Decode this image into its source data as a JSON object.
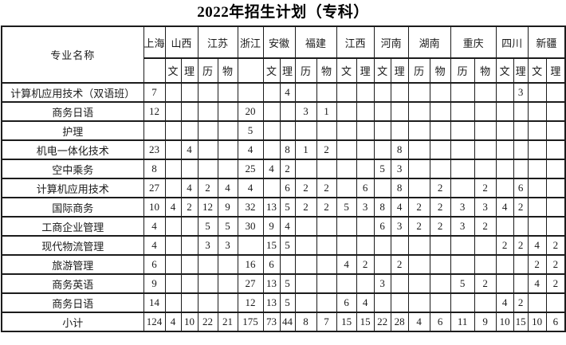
{
  "title": "2022年招生计划（专科）",
  "table": {
    "major_column_header": "专业名称",
    "provinces": [
      {
        "name": "上海",
        "subs": [
          ""
        ]
      },
      {
        "name": "山西",
        "subs": [
          "文",
          "理"
        ]
      },
      {
        "name": "江苏",
        "subs": [
          "历",
          "物"
        ]
      },
      {
        "name": "浙江",
        "subs": [
          ""
        ]
      },
      {
        "name": "安徽",
        "subs": [
          "文",
          "理"
        ]
      },
      {
        "name": "福建",
        "subs": [
          "历",
          "物"
        ]
      },
      {
        "name": "江西",
        "subs": [
          "文",
          "理"
        ]
      },
      {
        "name": "河南",
        "subs": [
          "文",
          "理"
        ]
      },
      {
        "name": "湖南",
        "subs": [
          "历",
          "物"
        ]
      },
      {
        "name": "重庆",
        "subs": [
          "历",
          "物"
        ]
      },
      {
        "name": "四川",
        "subs": [
          "文",
          "理"
        ]
      },
      {
        "name": "新疆",
        "subs": [
          "文",
          "理"
        ]
      }
    ],
    "column_keys": [
      "上海",
      "山西文",
      "山西理",
      "江苏历",
      "江苏物",
      "浙江",
      "安徽文",
      "安徽理",
      "福建历",
      "福建物",
      "江西文",
      "江西理",
      "河南文",
      "河南理",
      "湖南历",
      "湖南物",
      "重庆历",
      "重庆物",
      "四川文",
      "四川理",
      "新疆文",
      "新疆理"
    ],
    "rows": [
      {
        "major": "计算机应用技术（双语班）",
        "values": [
          "7",
          "",
          "",
          "",
          "",
          "",
          "",
          "4",
          "",
          "",
          "",
          "",
          "",
          "",
          "",
          "",
          "",
          "",
          "",
          "3",
          "",
          ""
        ]
      },
      {
        "major": "商务日语",
        "values": [
          "12",
          "",
          "",
          "",
          "",
          "20",
          "",
          "",
          "3",
          "1",
          "",
          "",
          "",
          "",
          "",
          "",
          "",
          "",
          "",
          "",
          "",
          ""
        ]
      },
      {
        "major": "护理",
        "values": [
          "",
          "",
          "",
          "",
          "",
          "5",
          "",
          "",
          "",
          "",
          "",
          "",
          "",
          "",
          "",
          "",
          "",
          "",
          "",
          "",
          "",
          ""
        ]
      },
      {
        "major": "机电一体化技术",
        "values": [
          "23",
          "",
          "4",
          "",
          "",
          "4",
          "",
          "8",
          "1",
          "2",
          "",
          "",
          "",
          "8",
          "",
          "",
          "",
          "",
          "",
          "",
          "",
          ""
        ]
      },
      {
        "major": "空中乘务",
        "values": [
          "8",
          "",
          "",
          "",
          "",
          "25",
          "4",
          "2",
          "",
          "",
          "",
          "",
          "5",
          "3",
          "",
          "",
          "",
          "",
          "",
          "",
          "",
          ""
        ]
      },
      {
        "major": "计算机应用技术",
        "values": [
          "27",
          "",
          "4",
          "2",
          "4",
          "4",
          "",
          "6",
          "2",
          "2",
          "",
          "6",
          "",
          "8",
          "",
          "2",
          "",
          "2",
          "",
          "6",
          "",
          ""
        ]
      },
      {
        "major": "国际商务",
        "values": [
          "10",
          "4",
          "2",
          "12",
          "9",
          "32",
          "13",
          "5",
          "2",
          "2",
          "5",
          "3",
          "8",
          "4",
          "2",
          "2",
          "3",
          "3",
          "4",
          "2",
          "",
          ""
        ]
      },
      {
        "major": "工商企业管理",
        "values": [
          "4",
          "",
          "",
          "5",
          "5",
          "30",
          "9",
          "4",
          "",
          "",
          "",
          "",
          "6",
          "3",
          "2",
          "2",
          "3",
          "2",
          "",
          "",
          "",
          ""
        ]
      },
      {
        "major": "现代物流管理",
        "values": [
          "4",
          "",
          "",
          "3",
          "3",
          "",
          "15",
          "5",
          "",
          "",
          "",
          "",
          "",
          "",
          "",
          "",
          "",
          "",
          "2",
          "2",
          "4",
          "2"
        ]
      },
      {
        "major": "旅游管理",
        "values": [
          "6",
          "",
          "",
          "",
          "",
          "16",
          "6",
          "",
          "",
          "",
          "4",
          "2",
          "",
          "2",
          "",
          "",
          "",
          "",
          "",
          "",
          "2",
          "2"
        ]
      },
      {
        "major": "商务英语",
        "values": [
          "9",
          "",
          "",
          "",
          "",
          "27",
          "13",
          "5",
          "",
          "",
          "",
          "",
          "3",
          "",
          "",
          "",
          "5",
          "2",
          "",
          "",
          "4",
          "2"
        ]
      },
      {
        "major": "商务日语",
        "values": [
          "14",
          "",
          "",
          "",
          "",
          "12",
          "13",
          "5",
          "",
          "",
          "6",
          "4",
          "",
          "",
          "",
          "",
          "",
          "",
          "4",
          "2",
          "",
          ""
        ]
      }
    ],
    "total_row": {
      "label": "小计",
      "values": [
        "124",
        "4",
        "10",
        "22",
        "21",
        "175",
        "73",
        "44",
        "8",
        "7",
        "15",
        "15",
        "22",
        "28",
        "4",
        "6",
        "11",
        "9",
        "10",
        "15",
        "10",
        "6"
      ]
    }
  },
  "colors": {
    "border": "#1c1c1c",
    "text": "#1a1a1a",
    "background": "#ffffff"
  }
}
